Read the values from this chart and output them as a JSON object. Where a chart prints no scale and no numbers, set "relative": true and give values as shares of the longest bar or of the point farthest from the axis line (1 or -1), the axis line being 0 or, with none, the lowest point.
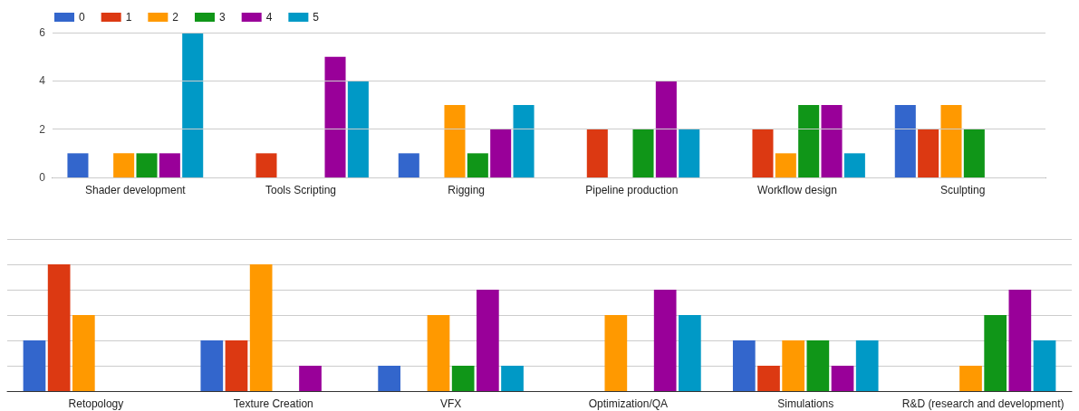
{
  "chart_data": [
    {
      "type": "bar",
      "categories": [
        "Shader development",
        "Tools Scripting",
        "Rigging",
        "Pipeline production",
        "Workflow design",
        "Sculpting"
      ],
      "series": [
        {
          "name": "0",
          "color": "#3366cc",
          "values": [
            1,
            0,
            1,
            0,
            0,
            3
          ]
        },
        {
          "name": "1",
          "color": "#dc3912",
          "values": [
            0,
            1,
            0,
            2,
            2,
            2
          ]
        },
        {
          "name": "2",
          "color": "#ff9900",
          "values": [
            1,
            0,
            3,
            0,
            1,
            3
          ]
        },
        {
          "name": "3",
          "color": "#109618",
          "values": [
            1,
            0,
            1,
            2,
            3,
            2
          ]
        },
        {
          "name": "4",
          "color": "#990099",
          "values": [
            1,
            5,
            2,
            4,
            3,
            0
          ]
        },
        {
          "name": "5",
          "color": "#0099c6",
          "values": [
            6,
            4,
            3,
            2,
            1,
            0
          ]
        }
      ],
      "ylim": [
        0,
        6
      ],
      "yticks": [
        0,
        2,
        4,
        6
      ],
      "grid": "y",
      "legend": "top left"
    },
    {
      "type": "bar",
      "relative": true,
      "categories": [
        "Retopology",
        "Texture Creation",
        "VFX",
        "Optimization/QA",
        "Simulations",
        "R&D (research and development)"
      ],
      "series": [
        {
          "color": "#3366cc",
          "values": [
            0.4,
            0.4,
            0.2,
            0,
            0.4,
            0
          ]
        },
        {
          "color": "#dc3912",
          "values": [
            1,
            0.4,
            0,
            0,
            0.2,
            0
          ]
        },
        {
          "color": "#ff9900",
          "values": [
            0.6,
            1,
            0.6,
            0.6,
            0.4,
            0.2
          ]
        },
        {
          "color": "#109618",
          "values": [
            0,
            0,
            0.2,
            0,
            0.4,
            0.6
          ]
        },
        {
          "color": "#990099",
          "values": [
            0,
            0.2,
            0.8,
            0.8,
            0.2,
            0.8
          ]
        },
        {
          "color": "#0099c6",
          "values": [
            0,
            0,
            0.2,
            0.6,
            0.4,
            0.4
          ]
        }
      ],
      "grid": "y",
      "tick_labels": "x"
    }
  ]
}
